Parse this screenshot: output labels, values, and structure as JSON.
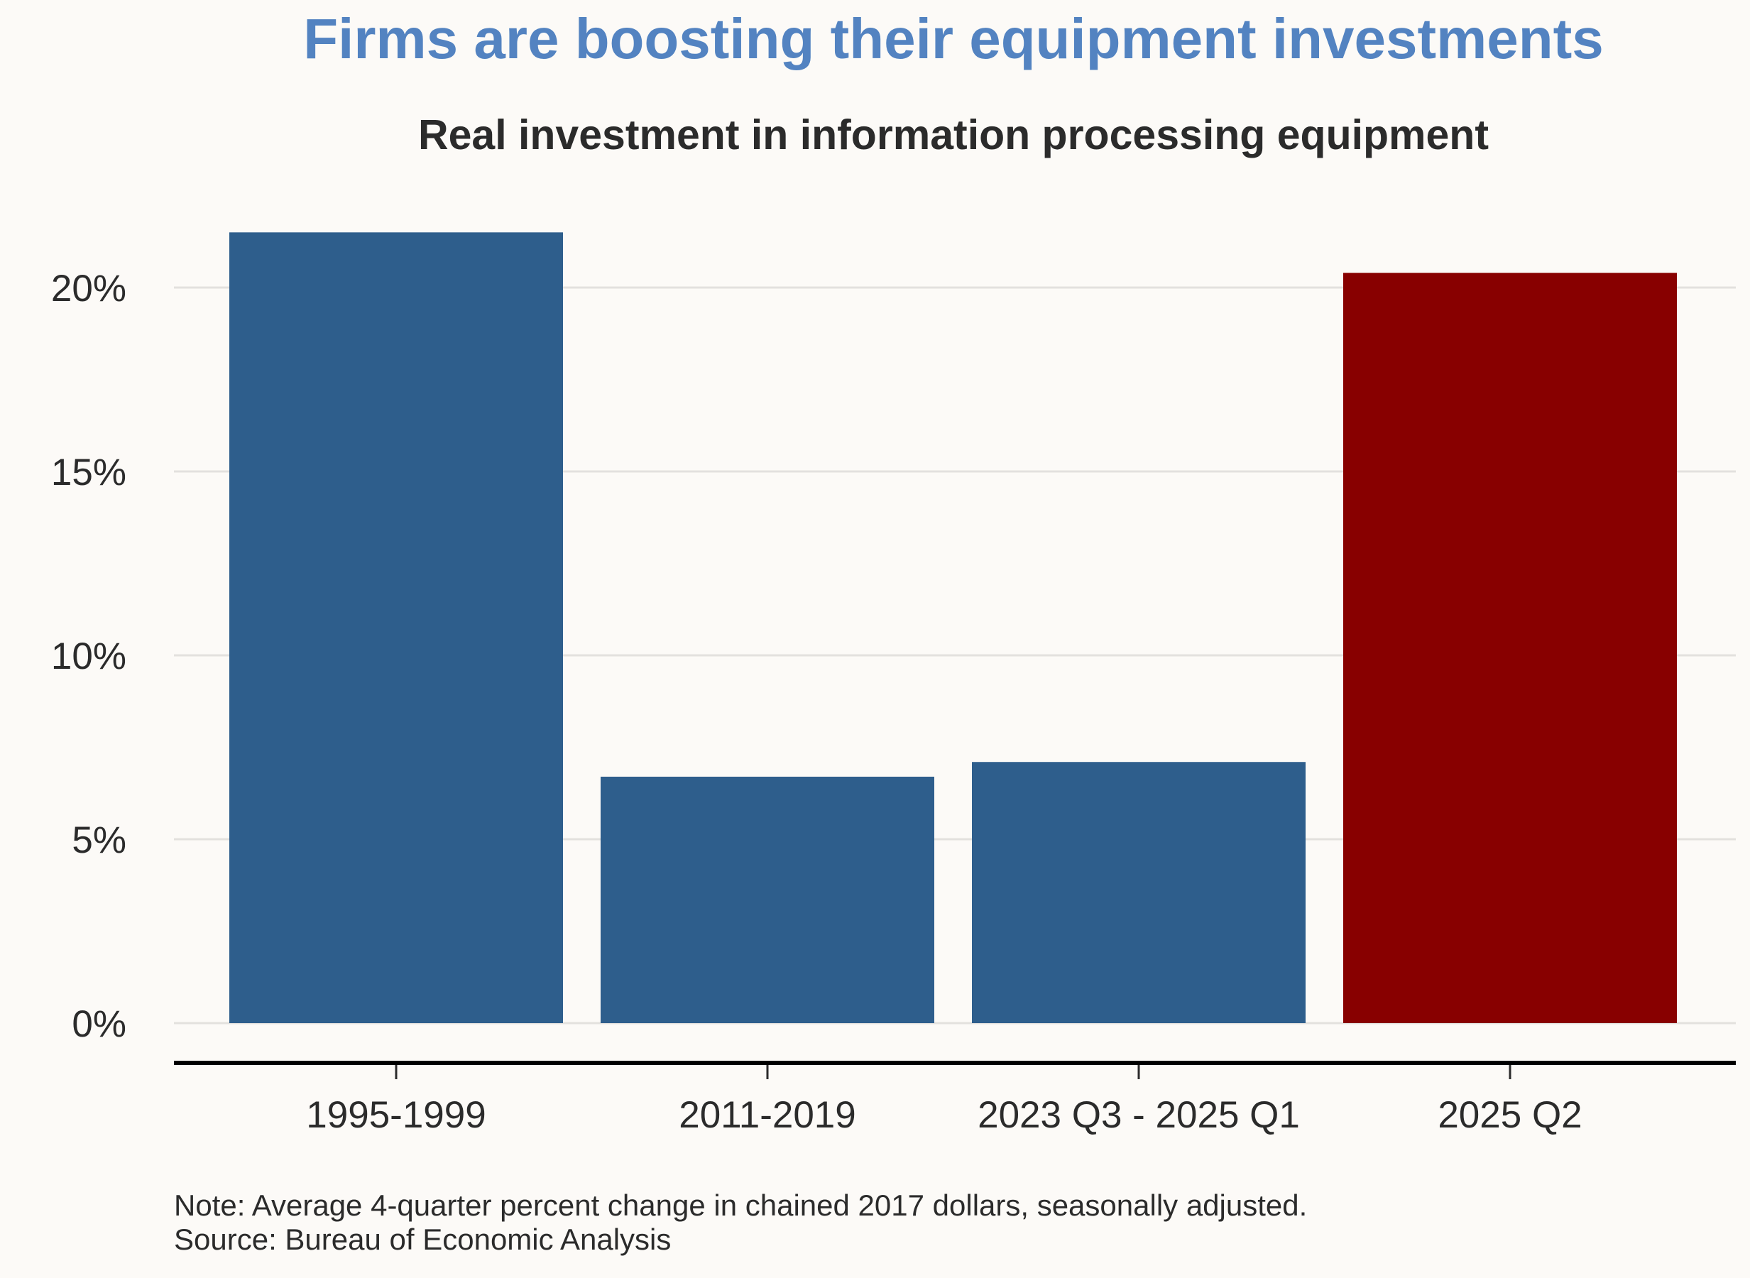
{
  "chart_data": {
    "type": "bar",
    "title": "Firms are boosting their equipment investments",
    "subtitle": "Real investment in information processing equipment",
    "categories": [
      "1995-1999",
      "2011-2019",
      "2023 Q3 - 2025 Q1",
      "2025 Q2"
    ],
    "values": [
      21.5,
      6.7,
      7.1,
      20.4
    ],
    "bar_colors": [
      "#2e5e8c",
      "#2e5e8c",
      "#2e5e8c",
      "#880000"
    ],
    "ylim": [
      0,
      21.5
    ],
    "yticks": [
      0,
      5,
      10,
      15,
      20
    ],
    "ytick_labels": [
      "0%",
      "5%",
      "10%",
      "15%",
      "20%"
    ],
    "xlabel": "",
    "ylabel": "",
    "grid": true,
    "note": "Note: Average 4-quarter percent change in chained 2017 dollars, seasonally adjusted.",
    "source": "Source: Bureau of Economic Analysis"
  }
}
